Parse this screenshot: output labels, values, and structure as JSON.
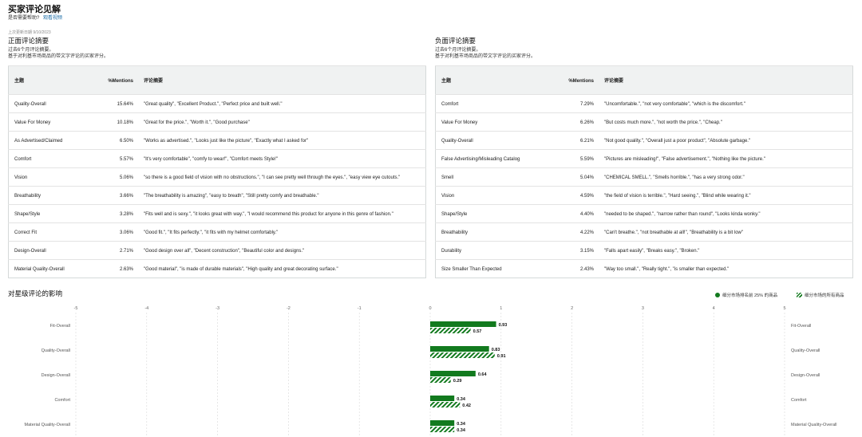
{
  "header": {
    "title": "买家评论见解",
    "help_question": "是否需要帮助?",
    "help_link": "观看视频",
    "updated": "上次更新日期 9/10/2023"
  },
  "positive": {
    "title": "正面评论摘要",
    "desc1": "过去6个月评论摘要。",
    "desc2": "基于对利基市场商品的带文字评论的买家评分。",
    "headers": [
      "主题",
      "%Mentions",
      "评论摘要"
    ],
    "rows": [
      {
        "topic": "Quality-Overall",
        "pct": "15.64%",
        "summary": "\"Great quality\", \"Excellent Product.\", \"Perfect price and built well.\""
      },
      {
        "topic": "Value For Money",
        "pct": "10.18%",
        "summary": "\"Great for the price.\", \"Worth it.\", \"Good purchase\""
      },
      {
        "topic": "As Advertised/Claimed",
        "pct": "6.50%",
        "summary": "\"Works as advertised.\", \"Looks just like the picture\", \"Exactly what I asked for\""
      },
      {
        "topic": "Comfort",
        "pct": "5.57%",
        "summary": "\"It's very comfortable\", \"comfy to wear!\", \"Comfort meets Style!\""
      },
      {
        "topic": "Vision",
        "pct": "5.06%",
        "summary": "\"so there is a good field of vision with no obstructions.\", \"I can see pretty well through the eyes.\", \"easy view eye cutouts.\""
      },
      {
        "topic": "Breathability",
        "pct": "3.66%",
        "summary": "\"The breathability is amazing\", \"easy to breath\", \"Still pretty comfy and breathable.\""
      },
      {
        "topic": "Shape/Style",
        "pct": "3.28%",
        "summary": "\"Fits well and is sexy.\", \"it looks great with way.\", \"I would recommend this product for anyone in this genre of fashion.\""
      },
      {
        "topic": "Correct Fit",
        "pct": "3.06%",
        "summary": "\"Good fit.\", \"It fits perfectly.\", \"it fits with my helmet comfortably.\""
      },
      {
        "topic": "Design-Overall",
        "pct": "2.71%",
        "summary": "\"Good design over all\", \"Decent construction\", \"Beautiful color and designs.\""
      },
      {
        "topic": "Material Quality-Overall",
        "pct": "2.63%",
        "summary": "\"Good material\", \"is made of durable materials\", \"High quality and great decorating surface.\""
      }
    ]
  },
  "negative": {
    "title": "负面评论摘要",
    "desc1": "过去6个月评论摘要。",
    "desc2": "基于对利基市场商品的带文字评论的买家评分。",
    "headers": [
      "主题",
      "%Mentions",
      "评论摘要"
    ],
    "rows": [
      {
        "topic": "Comfort",
        "pct": "7.29%",
        "summary": "\"Uncomfortable.\", \"not very comfortable\", \"which is the discomfort.\""
      },
      {
        "topic": "Value For Money",
        "pct": "6.26%",
        "summary": "\"But costs much more.\", \"not worth the price.\", \"Cheap.\""
      },
      {
        "topic": "Quality-Overall",
        "pct": "6.21%",
        "summary": "\"Not good quality.\", \"Overall just a poor product\", \"Absolute garbage.\""
      },
      {
        "topic": "False Advertising/Misleading Catalog",
        "pct": "5.59%",
        "summary": "\"Pictures are misleading!\", \"False advertisement.\", \"Nothing like the picture.\""
      },
      {
        "topic": "Smell",
        "pct": "5.04%",
        "summary": "\"CHEMICAL SMELL.\", \"Smells horrible.\", \"has a very strong odor.\""
      },
      {
        "topic": "Vision",
        "pct": "4.59%",
        "summary": "\"the field of vision is terrible.\", \"Hard seeing.\", \"Blind while wearing it.\""
      },
      {
        "topic": "Shape/Style",
        "pct": "4.40%",
        "summary": "\"needed to be shaped.\", \"narrow rather than round\", \"Looks kinda wonky.\""
      },
      {
        "topic": "Breathability",
        "pct": "4.22%",
        "summary": "\"Can't breathe.\", \"not breathable at all!\", \"Breathability is a bit low\""
      },
      {
        "topic": "Durability",
        "pct": "3.15%",
        "summary": "\"Falls apart easily\", \"Breaks easy.\", \"Broken.\""
      },
      {
        "topic": "Size Smaller Than Expected",
        "pct": "2.43%",
        "summary": "\"Way too small.\", \"Really tight.\", \"is smaller than expected.\""
      }
    ]
  },
  "impact": {
    "title": "对星级评论的影响",
    "legend_top": "细分市场排名前 25% 的商品",
    "legend_all": "细分市场的所有商品",
    "colors": {
      "bar": "#127a1e",
      "grid": "#d8d8d8"
    }
  },
  "chart_data": {
    "type": "bar",
    "orientation": "horizontal",
    "title": "对星级评论的影响",
    "x_ticks": [
      "-5",
      "-4",
      "-3",
      "-2",
      "-1",
      "0",
      "1",
      "2",
      "3",
      "4",
      "5"
    ],
    "xlim": [
      -5,
      5
    ],
    "categories": [
      "Fit-Overall",
      "Quality-Overall",
      "Design-Overall",
      "Comfort",
      "Material Quality-Overall"
    ],
    "series": [
      {
        "name": "细分市场排名前 25% 的商品",
        "style": "solid",
        "values": [
          0.93,
          0.83,
          0.64,
          0.34,
          0.34
        ],
        "labels": [
          "0.93",
          "0.83",
          "0.64",
          "0.34",
          "0.34"
        ]
      },
      {
        "name": "细分市场的所有商品",
        "style": "striped",
        "values": [
          0.57,
          0.91,
          0.29,
          0.42,
          0.34
        ],
        "labels": [
          "0.57",
          "0.91",
          "0.29",
          "0.42",
          "0.34"
        ]
      }
    ],
    "grid": true,
    "legend": "top-right"
  }
}
